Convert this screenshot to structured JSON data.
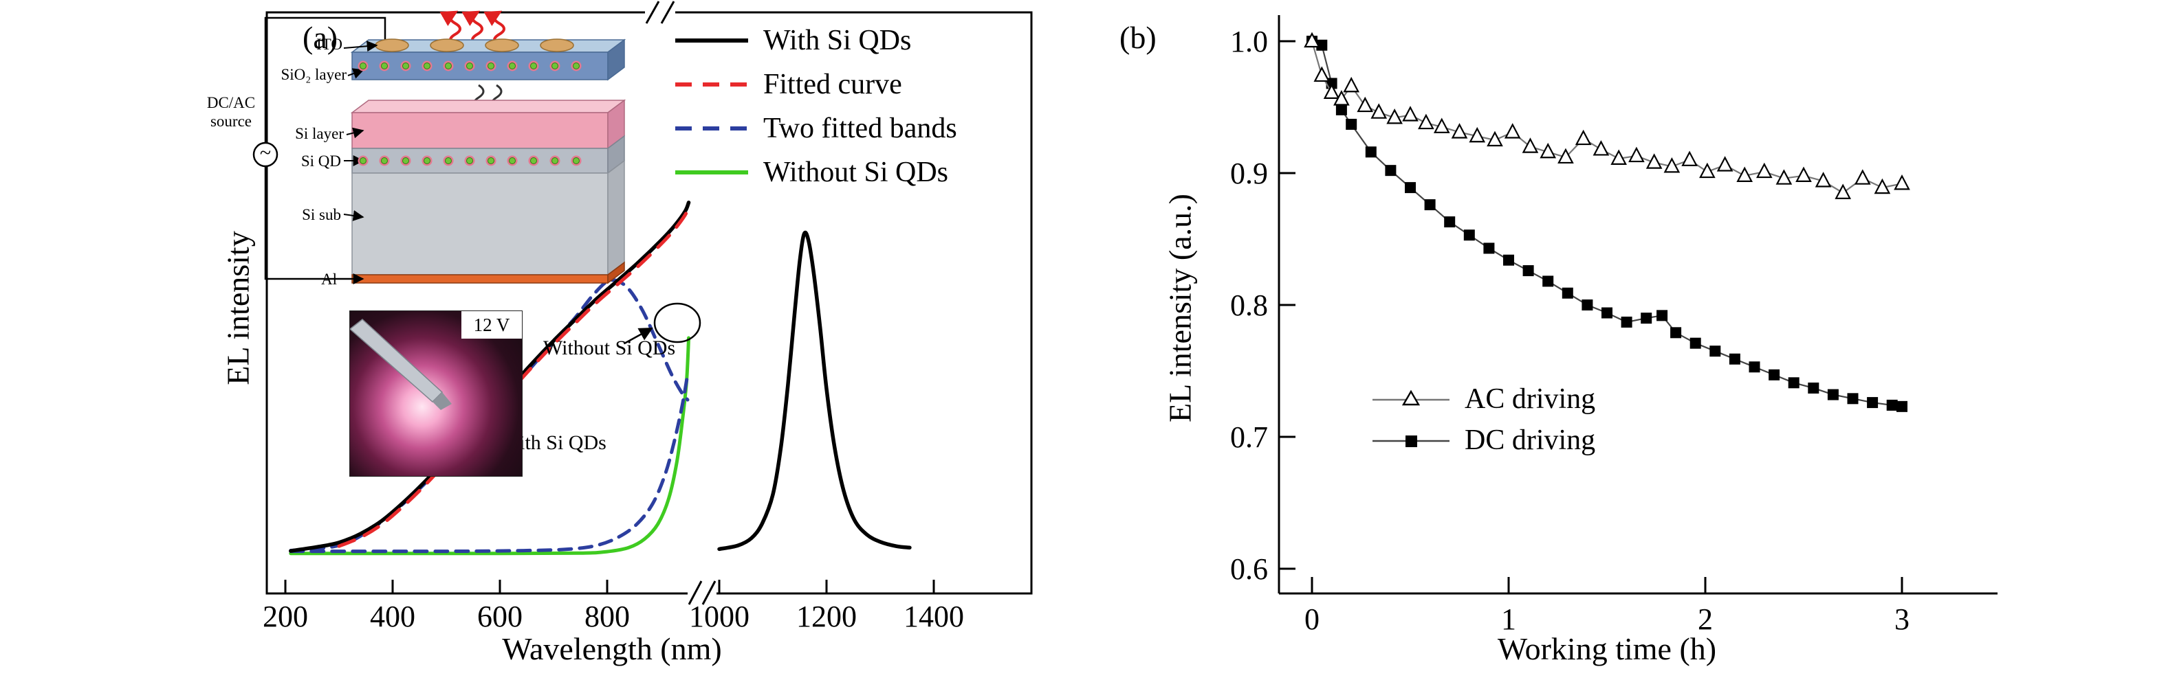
{
  "figure": {
    "panel_a_label": "(a)",
    "panel_b_label": "(b)"
  },
  "chart_data": [
    {
      "id": "panel_a",
      "panel_label": "(a)",
      "type": "line",
      "xlabel": "Wavelength (nm)",
      "ylabel": "EL intensity",
      "x_axis": {
        "unit": "nm",
        "ticks_before_break": [
          200,
          400,
          600,
          800
        ],
        "ticks_after_break": [
          1000,
          1200,
          1400
        ],
        "break_between": [
          955,
          1000
        ],
        "range": [
          200,
          1400
        ]
      },
      "y_axis": {
        "label": "EL intensity",
        "ticks": [],
        "note": "arbitrary units, no tick labels"
      },
      "legend": [
        {
          "label": "With Si QDs",
          "color": "#000000",
          "line": "solid"
        },
        {
          "label": "Fitted curve",
          "color": "#e82a2c",
          "line": "dashed"
        },
        {
          "label": "Two fitted bands",
          "color": "#2c3e9f",
          "line": "dashed"
        },
        {
          "label": "Without Si QDs",
          "color": "#3fcb20",
          "line": "solid"
        }
      ],
      "series": [
        {
          "id": "without-si-qds",
          "name": "Without Si QDs",
          "color": "#3fcb20",
          "dash": "",
          "width": 5,
          "points": [
            [
              210,
              0.008
            ],
            [
              400,
              0.008
            ],
            [
              600,
              0.008
            ],
            [
              750,
              0.009
            ],
            [
              800,
              0.013
            ],
            [
              840,
              0.024
            ],
            [
              870,
              0.048
            ],
            [
              895,
              0.09
            ],
            [
              915,
              0.16
            ],
            [
              930,
              0.26
            ],
            [
              940,
              0.37
            ],
            [
              948,
              0.48
            ],
            [
              952,
              0.6
            ]
          ]
        },
        {
          "id": "fitted-band-2",
          "name": "Two fitted bands (band 2, NIR)",
          "color": "#2c3e9f",
          "dash": "18 12",
          "width": 5,
          "points": [
            [
              210,
              0.014
            ],
            [
              500,
              0.014
            ],
            [
              650,
              0.016
            ],
            [
              730,
              0.02
            ],
            [
              780,
              0.03
            ],
            [
              820,
              0.052
            ],
            [
              855,
              0.088
            ],
            [
              885,
              0.145
            ],
            [
              908,
              0.225
            ],
            [
              925,
              0.315
            ],
            [
              940,
              0.415
            ],
            [
              950,
              0.5
            ]
          ]
        },
        {
          "id": "fitted-band-1",
          "name": "Two fitted bands (band 1, visible)",
          "color": "#2c3e9f",
          "dash": "18 12",
          "width": 5,
          "points": [
            [
              210,
              0.016
            ],
            [
              300,
              0.03
            ],
            [
              360,
              0.075
            ],
            [
              420,
              0.145
            ],
            [
              480,
              0.23
            ],
            [
              540,
              0.33
            ],
            [
              600,
              0.425
            ],
            [
              650,
              0.505
            ],
            [
              700,
              0.59
            ],
            [
              740,
              0.655
            ],
            [
              775,
              0.72
            ],
            [
              805,
              0.758
            ],
            [
              835,
              0.742
            ],
            [
              865,
              0.678
            ],
            [
              895,
              0.582
            ],
            [
              920,
              0.5
            ],
            [
              938,
              0.452
            ],
            [
              950,
              0.43
            ]
          ]
        },
        {
          "id": "with-si-qds",
          "name": "With Si QDs",
          "color": "#000000",
          "dash": "",
          "width": 5.5,
          "points": [
            [
              210,
              0.015
            ],
            [
              260,
              0.026
            ],
            [
              300,
              0.038
            ],
            [
              340,
              0.062
            ],
            [
              380,
              0.098
            ],
            [
              420,
              0.148
            ],
            [
              460,
              0.205
            ],
            [
              500,
              0.268
            ],
            [
              540,
              0.332
            ],
            [
              580,
              0.4
            ],
            [
              620,
              0.465
            ],
            [
              660,
              0.53
            ],
            [
              700,
              0.592
            ],
            [
              740,
              0.65
            ],
            [
              780,
              0.707
            ],
            [
              820,
              0.758
            ],
            [
              860,
              0.81
            ],
            [
              900,
              0.867
            ],
            [
              925,
              0.907
            ],
            [
              945,
              0.947
            ],
            [
              952,
              0.972
            ]
          ]
        },
        {
          "id": "fitted-curve",
          "name": "Fitted curve",
          "color": "#e82a2c",
          "dash": "24 16",
          "width": 5,
          "points": [
            [
              300,
              0.028
            ],
            [
              340,
              0.052
            ],
            [
              380,
              0.088
            ],
            [
              420,
              0.138
            ],
            [
              460,
              0.195
            ],
            [
              500,
              0.258
            ],
            [
              540,
              0.322
            ],
            [
              580,
              0.39
            ],
            [
              620,
              0.455
            ],
            [
              660,
              0.52
            ],
            [
              700,
              0.582
            ],
            [
              740,
              0.64
            ],
            [
              780,
              0.697
            ],
            [
              820,
              0.748
            ],
            [
              860,
              0.8
            ],
            [
              900,
              0.857
            ],
            [
              925,
              0.897
            ],
            [
              945,
              0.937
            ],
            [
              952,
              0.96
            ]
          ]
        },
        {
          "id": "with-si-qds-nir-peak",
          "name": "With Si QDs (NIR peak beyond axis break)",
          "color": "#000000",
          "dash": "",
          "width": 5.5,
          "points": [
            [
              1000,
              0.02
            ],
            [
              1035,
              0.03
            ],
            [
              1060,
              0.05
            ],
            [
              1080,
              0.09
            ],
            [
              1100,
              0.17
            ],
            [
              1115,
              0.3
            ],
            [
              1128,
              0.47
            ],
            [
              1140,
              0.66
            ],
            [
              1150,
              0.81
            ],
            [
              1158,
              0.885
            ],
            [
              1166,
              0.87
            ],
            [
              1176,
              0.78
            ],
            [
              1188,
              0.63
            ],
            [
              1200,
              0.46
            ],
            [
              1215,
              0.3
            ],
            [
              1232,
              0.18
            ],
            [
              1252,
              0.1
            ],
            [
              1275,
              0.06
            ],
            [
              1300,
              0.04
            ],
            [
              1330,
              0.028
            ],
            [
              1355,
              0.024
            ]
          ]
        }
      ],
      "annotations": [
        {
          "text": "Without Si QDs",
          "points_to": "green curve at axis break"
        },
        {
          "text": "With Si QDs",
          "points_to": "black curve near 520 nm"
        }
      ],
      "insets": {
        "device": {
          "source_label_line1": "DC/AC",
          "source_label_line2": "source",
          "source_symbol": "~",
          "layer_labels": [
            "ITO",
            "SiO₂ layer",
            "Si layer",
            "Si QD",
            "Si sub",
            "Al"
          ]
        },
        "photo": {
          "label": "12 V"
        }
      }
    },
    {
      "id": "panel_b",
      "panel_label": "(b)",
      "type": "scatter-line",
      "xlabel": "Working time (h)",
      "ylabel": "EL intensity (a.u.)",
      "x_axis": {
        "ticks": [
          0,
          1,
          2,
          3
        ],
        "range": [
          -0.17,
          3.45
        ],
        "unit": "h"
      },
      "y_axis": {
        "ticks": [
          1.0,
          0.9,
          0.8,
          0.7,
          0.6
        ],
        "range": [
          0.58,
          1.02
        ]
      },
      "legend": [
        {
          "label": "AC driving",
          "marker": "triangle-open",
          "marker_color": "#000000",
          "line_color": "#777777"
        },
        {
          "label": "DC driving",
          "marker": "square-filled",
          "marker_color": "#000000",
          "line_color": "#444444"
        }
      ],
      "series": [
        {
          "id": "dc-driving",
          "name": "DC driving",
          "marker": "square-filled",
          "line_color": "#444444",
          "marker_color": "#000000",
          "points": [
            [
              0,
              1.0
            ],
            [
              0.05,
              0.997
            ],
            [
              0.1,
              0.968
            ],
            [
              0.15,
              0.948
            ],
            [
              0.2,
              0.937
            ],
            [
              0.3,
              0.916
            ],
            [
              0.4,
              0.902
            ],
            [
              0.5,
              0.889
            ],
            [
              0.6,
              0.876
            ],
            [
              0.7,
              0.863
            ],
            [
              0.8,
              0.853
            ],
            [
              0.9,
              0.843
            ],
            [
              1.0,
              0.834
            ],
            [
              1.1,
              0.826
            ],
            [
              1.2,
              0.818
            ],
            [
              1.3,
              0.809
            ],
            [
              1.4,
              0.8
            ],
            [
              1.5,
              0.794
            ],
            [
              1.6,
              0.787
            ],
            [
              1.7,
              0.79
            ],
            [
              1.78,
              0.792
            ],
            [
              1.85,
              0.779
            ],
            [
              1.95,
              0.771
            ],
            [
              2.05,
              0.765
            ],
            [
              2.15,
              0.759
            ],
            [
              2.25,
              0.753
            ],
            [
              2.35,
              0.747
            ],
            [
              2.45,
              0.741
            ],
            [
              2.55,
              0.737
            ],
            [
              2.65,
              0.732
            ],
            [
              2.75,
              0.729
            ],
            [
              2.85,
              0.726
            ],
            [
              2.95,
              0.724
            ],
            [
              3.0,
              0.723
            ]
          ]
        },
        {
          "id": "ac-driving",
          "name": "AC driving",
          "marker": "triangle-open",
          "line_color": "#777777",
          "marker_color": "#000000",
          "points": [
            [
              0,
              1.0
            ],
            [
              0.05,
              0.974
            ],
            [
              0.1,
              0.961
            ],
            [
              0.15,
              0.956
            ],
            [
              0.2,
              0.966
            ],
            [
              0.27,
              0.951
            ],
            [
              0.34,
              0.946
            ],
            [
              0.42,
              0.942
            ],
            [
              0.5,
              0.944
            ],
            [
              0.58,
              0.938
            ],
            [
              0.66,
              0.935
            ],
            [
              0.75,
              0.931
            ],
            [
              0.84,
              0.928
            ],
            [
              0.93,
              0.925
            ],
            [
              1.02,
              0.931
            ],
            [
              1.11,
              0.92
            ],
            [
              1.2,
              0.916
            ],
            [
              1.29,
              0.912
            ],
            [
              1.38,
              0.926
            ],
            [
              1.47,
              0.918
            ],
            [
              1.56,
              0.911
            ],
            [
              1.65,
              0.913
            ],
            [
              1.74,
              0.908
            ],
            [
              1.83,
              0.905
            ],
            [
              1.92,
              0.91
            ],
            [
              2.01,
              0.901
            ],
            [
              2.1,
              0.906
            ],
            [
              2.2,
              0.898
            ],
            [
              2.3,
              0.901
            ],
            [
              2.4,
              0.896
            ],
            [
              2.5,
              0.898
            ],
            [
              2.6,
              0.894
            ],
            [
              2.7,
              0.885
            ],
            [
              2.8,
              0.896
            ],
            [
              2.9,
              0.889
            ],
            [
              3.0,
              0.892
            ]
          ]
        }
      ]
    }
  ]
}
